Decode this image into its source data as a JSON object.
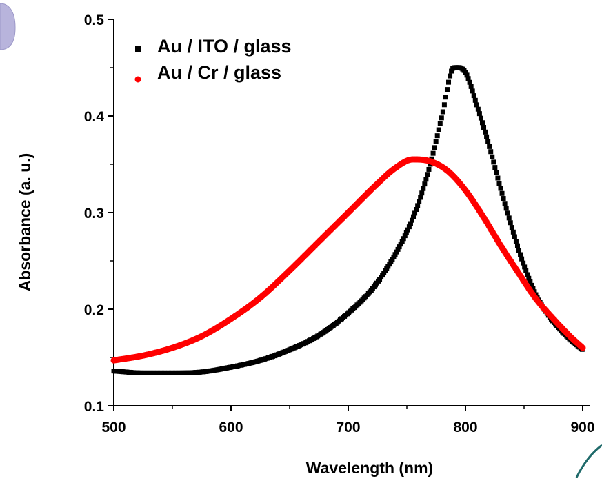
{
  "chart_data": {
    "type": "scatter",
    "xlabel": "Wavelength (nm)",
    "ylabel": "Absorbance (a. u.)",
    "xlim": [
      500,
      900
    ],
    "ylim": [
      0.1,
      0.5
    ],
    "x_ticks": [
      500,
      600,
      700,
      800,
      900
    ],
    "x_tick_labels": [
      "500",
      "600",
      "700",
      "800",
      "900"
    ],
    "y_ticks": [
      0.1,
      0.2,
      0.3,
      0.4,
      0.5
    ],
    "y_tick_labels": [
      "0.1",
      "0.2",
      "0.3",
      "0.4",
      "0.5"
    ],
    "grid": false,
    "legend_position": "top-left",
    "series": [
      {
        "name": "Au / ITO / glass",
        "marker": "square",
        "color": "#000000",
        "x": [
          500,
          525,
          550,
          575,
          600,
          625,
          650,
          675,
          700,
          725,
          750,
          760,
          770,
          780,
          790,
          800,
          810,
          820,
          830,
          840,
          850,
          860,
          870,
          880,
          890,
          900
        ],
        "y": [
          0.136,
          0.134,
          0.134,
          0.135,
          0.14,
          0.147,
          0.158,
          0.173,
          0.196,
          0.228,
          0.28,
          0.31,
          0.35,
          0.4,
          0.45,
          0.445,
          0.41,
          0.37,
          0.325,
          0.283,
          0.245,
          0.215,
          0.195,
          0.18,
          0.168,
          0.158
        ]
      },
      {
        "name": "Au / Cr / glass",
        "marker": "circle",
        "color": "#ff0000",
        "x": [
          500,
          525,
          550,
          575,
          600,
          625,
          650,
          675,
          700,
          725,
          740,
          755,
          770,
          785,
          800,
          815,
          830,
          845,
          860,
          875,
          890,
          900
        ],
        "y": [
          0.147,
          0.152,
          0.16,
          0.172,
          0.19,
          0.212,
          0.24,
          0.27,
          0.3,
          0.33,
          0.346,
          0.355,
          0.353,
          0.343,
          0.323,
          0.296,
          0.266,
          0.238,
          0.211,
          0.19,
          0.171,
          0.16
        ]
      }
    ]
  },
  "decor": {
    "top_left_shape_color": "#b8b4dc",
    "bottom_right_arc_color": "#1f6a6a"
  }
}
